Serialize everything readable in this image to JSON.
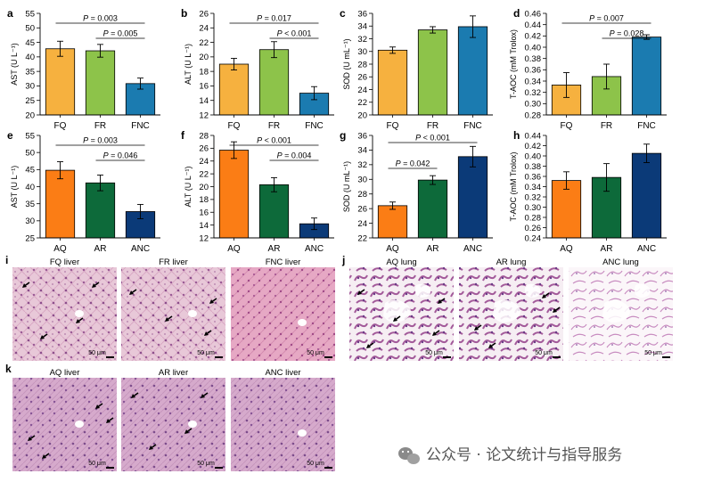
{
  "colors": {
    "FQ": "#f6b13f",
    "FR": "#8dc34a",
    "FNC": "#1b7bb0",
    "AQ": "#fb7d15",
    "AR": "#0d6a3a",
    "ANC": "#0b3a78",
    "tissue_bg": "#ead0dc",
    "tissue_dark": "#b55a92",
    "lung_bg": "#f4eaf1"
  },
  "chart_data": [
    {
      "panel": "a",
      "type": "bar",
      "ylabel": "AST (U L⁻¹)",
      "ylim": [
        20,
        55
      ],
      "yticks": [
        20,
        25,
        30,
        35,
        40,
        45,
        50,
        55
      ],
      "categories": [
        "FQ",
        "FR",
        "FNC"
      ],
      "values": [
        42.8,
        42.1,
        30.8
      ],
      "errors": [
        2.6,
        2.2,
        1.9
      ],
      "color_keys": [
        "FQ",
        "FR",
        "FNC"
      ],
      "annotations": [
        {
          "text": "P = 0.003",
          "from": 0,
          "to": 2
        },
        {
          "text": "P = 0.005",
          "from": 1,
          "to": 2
        }
      ]
    },
    {
      "panel": "b",
      "type": "bar",
      "ylabel": "ALT (U L⁻¹)",
      "ylim": [
        12,
        26
      ],
      "yticks": [
        12,
        14,
        16,
        18,
        20,
        22,
        24,
        26
      ],
      "categories": [
        "FQ",
        "FR",
        "FNC"
      ],
      "values": [
        19.0,
        21.0,
        15.0
      ],
      "errors": [
        0.8,
        1.1,
        0.9
      ],
      "color_keys": [
        "FQ",
        "FR",
        "FNC"
      ],
      "annotations": [
        {
          "text": "P = 0.017",
          "from": 0,
          "to": 2
        },
        {
          "text": "P < 0.001",
          "from": 1,
          "to": 2
        }
      ]
    },
    {
      "panel": "c",
      "type": "bar",
      "ylabel": "SOD (U mL⁻¹)",
      "ylim": [
        20,
        36
      ],
      "yticks": [
        20,
        22,
        24,
        26,
        28,
        30,
        32,
        34,
        36
      ],
      "categories": [
        "FQ",
        "FR",
        "FNC"
      ],
      "values": [
        30.2,
        33.4,
        33.9
      ],
      "errors": [
        0.5,
        0.5,
        1.7
      ],
      "color_keys": [
        "FQ",
        "FR",
        "FNC"
      ],
      "annotations": []
    },
    {
      "panel": "d",
      "type": "bar",
      "ylabel": "T-AOC (mM Trolox)",
      "ylim": [
        0.28,
        0.46
      ],
      "yticks": [
        0.28,
        0.3,
        0.32,
        0.34,
        0.36,
        0.38,
        0.4,
        0.42,
        0.44,
        0.46
      ],
      "categories": [
        "FQ",
        "FR",
        "FNC"
      ],
      "values": [
        0.333,
        0.348,
        0.418
      ],
      "errors": [
        0.022,
        0.022,
        0.004
      ],
      "color_keys": [
        "FQ",
        "FR",
        "FNC"
      ],
      "annotations": [
        {
          "text": "P = 0.007",
          "from": 0,
          "to": 2
        },
        {
          "text": "P = 0.028",
          "from": 1,
          "to": 2
        }
      ]
    },
    {
      "panel": "e",
      "type": "bar",
      "ylabel": "AST (U L⁻¹)",
      "ylim": [
        25,
        55
      ],
      "yticks": [
        25,
        30,
        35,
        40,
        45,
        50,
        55
      ],
      "categories": [
        "AQ",
        "AR",
        "ANC"
      ],
      "values": [
        44.8,
        41.1,
        32.7
      ],
      "errors": [
        2.5,
        2.3,
        2.1
      ],
      "color_keys": [
        "AQ",
        "AR",
        "ANC"
      ],
      "annotations": [
        {
          "text": "P = 0.003",
          "from": 0,
          "to": 2
        },
        {
          "text": "P = 0.046",
          "from": 1,
          "to": 2
        }
      ]
    },
    {
      "panel": "f",
      "type": "bar",
      "ylabel": "ALT (U L⁻¹)",
      "ylim": [
        12,
        28
      ],
      "yticks": [
        12,
        14,
        16,
        18,
        20,
        22,
        24,
        26,
        28
      ],
      "categories": [
        "AQ",
        "AR",
        "ANC"
      ],
      "values": [
        25.7,
        20.3,
        14.2
      ],
      "errors": [
        1.3,
        1.1,
        0.9
      ],
      "color_keys": [
        "AQ",
        "AR",
        "ANC"
      ],
      "annotations": [
        {
          "text": "P < 0.001",
          "from": 0,
          "to": 2
        },
        {
          "text": "P = 0.004",
          "from": 1,
          "to": 2
        }
      ]
    },
    {
      "panel": "g",
      "type": "bar",
      "ylabel": "SOD (U mL⁻¹)",
      "ylim": [
        22,
        36
      ],
      "yticks": [
        22,
        24,
        26,
        28,
        30,
        32,
        34,
        36
      ],
      "categories": [
        "AQ",
        "AR",
        "ANC"
      ],
      "values": [
        26.4,
        29.9,
        33.1
      ],
      "errors": [
        0.5,
        0.6,
        1.4
      ],
      "color_keys": [
        "AQ",
        "AR",
        "ANC"
      ],
      "annotations": [
        {
          "text": "P < 0.001",
          "from": 0,
          "to": 2
        },
        {
          "text": "P = 0.042",
          "from": 0,
          "to": 1
        }
      ]
    },
    {
      "panel": "h",
      "type": "bar",
      "ylabel": "T-AOC (mM Trolox)",
      "ylim": [
        0.24,
        0.44
      ],
      "yticks": [
        0.24,
        0.26,
        0.28,
        0.3,
        0.32,
        0.34,
        0.36,
        0.38,
        0.4,
        0.42,
        0.44
      ],
      "categories": [
        "AQ",
        "AR",
        "ANC"
      ],
      "values": [
        0.352,
        0.358,
        0.405
      ],
      "errors": [
        0.017,
        0.027,
        0.018
      ],
      "color_keys": [
        "AQ",
        "AR",
        "ANC"
      ],
      "annotations": []
    }
  ],
  "histology": [
    {
      "panel": "i",
      "images": [
        {
          "title": "FQ liver",
          "kind": "liver",
          "arrows": 4
        },
        {
          "title": "FR liver",
          "kind": "liver",
          "arrows": 4
        },
        {
          "title": "FNC liver",
          "kind": "liver-normal",
          "arrows": 0
        }
      ]
    },
    {
      "panel": "j",
      "images": [
        {
          "title": "AQ lung",
          "kind": "lung",
          "arrows": 5
        },
        {
          "title": "AR lung",
          "kind": "lung",
          "arrows": 4
        },
        {
          "title": "ANC lung",
          "kind": "lung-normal",
          "arrows": 0
        }
      ]
    },
    {
      "panel": "k",
      "images": [
        {
          "title": "AQ liver",
          "kind": "liver",
          "arrows": 4
        },
        {
          "title": "AR liver",
          "kind": "liver",
          "arrows": 4
        },
        {
          "title": "ANC liver",
          "kind": "liver-normal",
          "arrows": 0
        }
      ]
    }
  ],
  "scale_bar_label": "50 μm",
  "watermark": "公众号 · 论文统计与指导服务"
}
